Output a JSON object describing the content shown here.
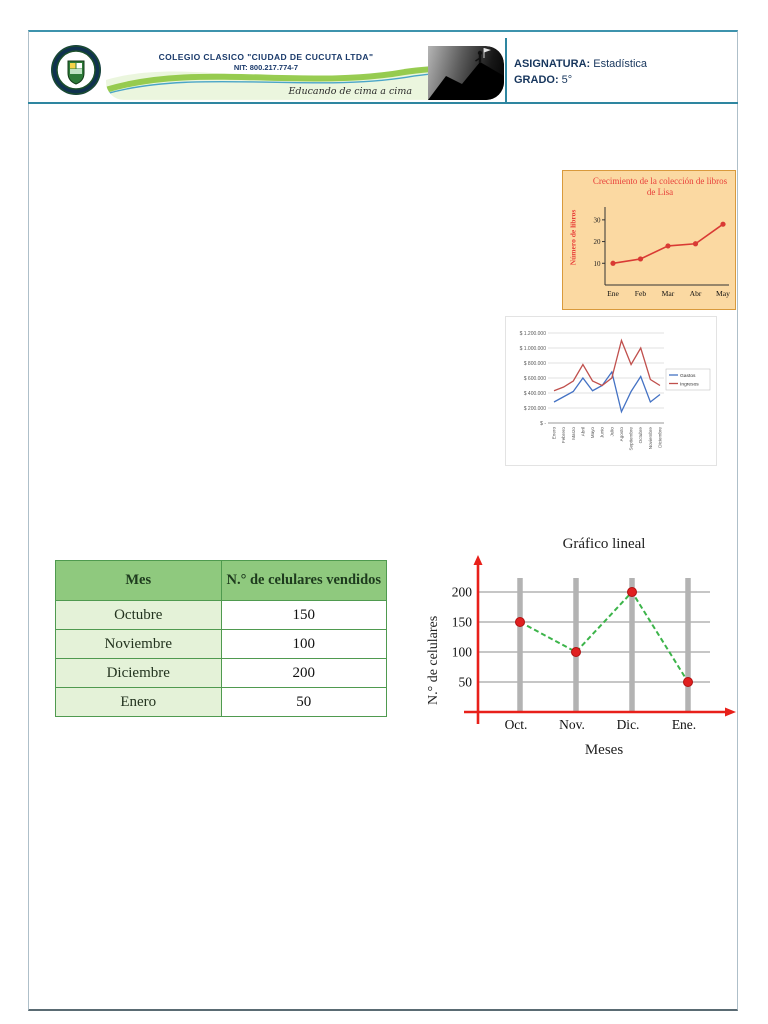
{
  "header": {
    "school_name": "COLEGIO CLASICO \"CIUDAD DE CUCUTA LTDA\"",
    "nit": "NIT: 800.217.774-7",
    "motto": "Educando de cima a cima",
    "asignatura_label": "ASIGNATURA:",
    "asignatura_value": "Estadística",
    "grado_label": "GRADO:",
    "grado_value": "5°"
  },
  "chart_data": [
    {
      "id": "lisa_books",
      "type": "line",
      "title": "Crecimiento de la colección de libros de Lisa",
      "ylabel": "Número de libros",
      "categories": [
        "Ene",
        "Feb",
        "Mar",
        "Abr",
        "May"
      ],
      "values": [
        10,
        12,
        18,
        19,
        28
      ],
      "yticks": [
        10,
        20,
        30
      ],
      "ylim": [
        0,
        35
      ],
      "line_color": "#d93a34",
      "bg_color": "#fbd9a2",
      "grid": false
    },
    {
      "id": "gastos_ingresos",
      "type": "line",
      "title": "",
      "categories": [
        "Enero",
        "Febrero",
        "Marzo",
        "Abril",
        "Mayo",
        "Junio",
        "Julio",
        "Agosto",
        "Septiembre",
        "Octubre",
        "Noviembre",
        "Diciembre"
      ],
      "series": [
        {
          "name": "Gastos",
          "color": "#4472c4",
          "values": [
            280000,
            350000,
            420000,
            600000,
            430000,
            500000,
            680000,
            150000,
            420000,
            620000,
            280000,
            380000
          ]
        },
        {
          "name": "Ingresos",
          "color": "#c0504d",
          "values": [
            430000,
            480000,
            560000,
            780000,
            560000,
            500000,
            600000,
            1100000,
            780000,
            1000000,
            580000,
            500000
          ]
        }
      ],
      "yticks_labels": [
        "$ -",
        "$ 200.000",
        "$ 400.000",
        "$ 600.000",
        "$ 800.000",
        "$ 1.000.000",
        "$ 1.200.000"
      ],
      "ylim": [
        0,
        1200000
      ],
      "legend_position": "right",
      "grid": true
    },
    {
      "id": "grafico_lineal",
      "type": "line",
      "title": "Gráfico lineal",
      "xlabel": "Meses",
      "ylabel": "N.° de celulares",
      "categories": [
        "Oct.",
        "Nov.",
        "Dic.",
        "Ene."
      ],
      "values": [
        150,
        100,
        200,
        50
      ],
      "yticks": [
        200,
        150,
        100,
        50
      ],
      "ylim": [
        0,
        240
      ],
      "line_color": "#3cb44a",
      "point_color": "#e02020",
      "axis_color": "#e8201a",
      "grid": true
    }
  ],
  "table": {
    "headers": [
      "Mes",
      "N.° de celulares vendidos"
    ],
    "rows": [
      [
        "Octubre",
        "150"
      ],
      [
        "Noviembre",
        "100"
      ],
      [
        "Diciembre",
        "200"
      ],
      [
        "Enero",
        "50"
      ]
    ]
  }
}
